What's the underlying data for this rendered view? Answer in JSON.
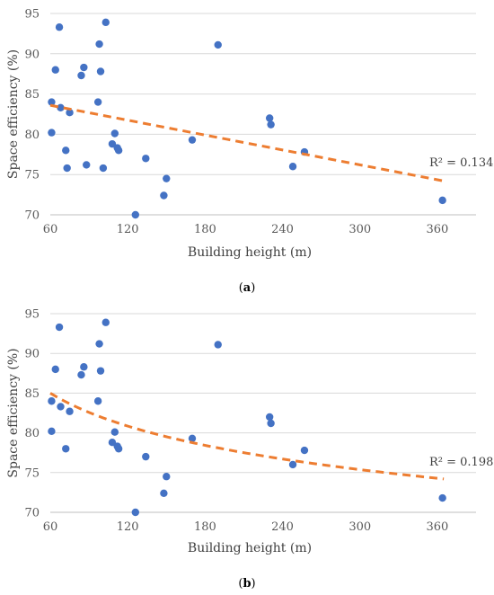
{
  "chart_data": [
    {
      "type": "scatter",
      "panel_label": "a",
      "xlabel": "Building height (m)",
      "ylabel": "Space efficiency (%)",
      "xlim": [
        60,
        390
      ],
      "ylim": [
        70,
        95
      ],
      "xticks": [
        60,
        120,
        180,
        240,
        300,
        360
      ],
      "yticks": [
        70,
        75,
        80,
        85,
        90,
        95
      ],
      "grid": "horizontal",
      "point_color": "#4472C4",
      "trendline_color": "#ED7D31",
      "trendline": {
        "kind": "linear",
        "r2_text": "R² = 0.1343",
        "x": [
          60,
          365
        ],
        "y": [
          83.6,
          74.2
        ]
      },
      "points": [
        {
          "x": 61,
          "y": 84.0
        },
        {
          "x": 61,
          "y": 80.2
        },
        {
          "x": 64,
          "y": 88.0
        },
        {
          "x": 67,
          "y": 93.3
        },
        {
          "x": 68,
          "y": 83.3
        },
        {
          "x": 72,
          "y": 78.0
        },
        {
          "x": 73,
          "y": 75.8
        },
        {
          "x": 75,
          "y": 82.7
        },
        {
          "x": 84,
          "y": 87.3
        },
        {
          "x": 86,
          "y": 88.3
        },
        {
          "x": 88,
          "y": 76.2
        },
        {
          "x": 97,
          "y": 84.0
        },
        {
          "x": 98,
          "y": 91.2
        },
        {
          "x": 99,
          "y": 87.8
        },
        {
          "x": 101,
          "y": 75.8
        },
        {
          "x": 103,
          "y": 93.9
        },
        {
          "x": 108,
          "y": 78.8
        },
        {
          "x": 110,
          "y": 80.1
        },
        {
          "x": 112,
          "y": 78.3
        },
        {
          "x": 113,
          "y": 78.0
        },
        {
          "x": 126,
          "y": 70.0
        },
        {
          "x": 134,
          "y": 77.0
        },
        {
          "x": 148,
          "y": 72.4
        },
        {
          "x": 150,
          "y": 74.5
        },
        {
          "x": 170,
          "y": 79.3
        },
        {
          "x": 190,
          "y": 91.1
        },
        {
          "x": 230,
          "y": 82.0
        },
        {
          "x": 231,
          "y": 81.2
        },
        {
          "x": 248,
          "y": 76.0
        },
        {
          "x": 257,
          "y": 77.8
        },
        {
          "x": 364,
          "y": 71.8
        }
      ]
    },
    {
      "type": "scatter",
      "panel_label": "b",
      "xlabel": "Building height (m)",
      "ylabel": "Space efficiency (%)",
      "xlim": [
        60,
        390
      ],
      "ylim": [
        70,
        95
      ],
      "xticks": [
        60,
        120,
        180,
        240,
        300,
        360
      ],
      "yticks": [
        70,
        75,
        80,
        85,
        90,
        95
      ],
      "grid": "horizontal",
      "point_color": "#4472C4",
      "trendline_color": "#ED7D31",
      "trendline": {
        "kind": "logarithmic",
        "r2_text": "R² = 0.1986",
        "x": [
          60,
          365
        ],
        "y": [
          85.0,
          74.2
        ]
      },
      "points": [
        {
          "x": 61,
          "y": 84.0
        },
        {
          "x": 61,
          "y": 80.2
        },
        {
          "x": 64,
          "y": 88.0
        },
        {
          "x": 67,
          "y": 93.3
        },
        {
          "x": 68,
          "y": 83.3
        },
        {
          "x": 72,
          "y": 78.0
        },
        {
          "x": 75,
          "y": 82.7
        },
        {
          "x": 84,
          "y": 87.3
        },
        {
          "x": 86,
          "y": 88.3
        },
        {
          "x": 97,
          "y": 84.0
        },
        {
          "x": 98,
          "y": 91.2
        },
        {
          "x": 99,
          "y": 87.8
        },
        {
          "x": 103,
          "y": 93.9
        },
        {
          "x": 108,
          "y": 78.8
        },
        {
          "x": 110,
          "y": 80.1
        },
        {
          "x": 112,
          "y": 78.3
        },
        {
          "x": 113,
          "y": 78.0
        },
        {
          "x": 126,
          "y": 70.0
        },
        {
          "x": 134,
          "y": 77.0
        },
        {
          "x": 148,
          "y": 72.4
        },
        {
          "x": 150,
          "y": 74.5
        },
        {
          "x": 170,
          "y": 79.3
        },
        {
          "x": 190,
          "y": 91.1
        },
        {
          "x": 230,
          "y": 82.0
        },
        {
          "x": 231,
          "y": 81.2
        },
        {
          "x": 248,
          "y": 76.0
        },
        {
          "x": 257,
          "y": 77.8
        },
        {
          "x": 364,
          "y": 71.8
        }
      ]
    }
  ]
}
